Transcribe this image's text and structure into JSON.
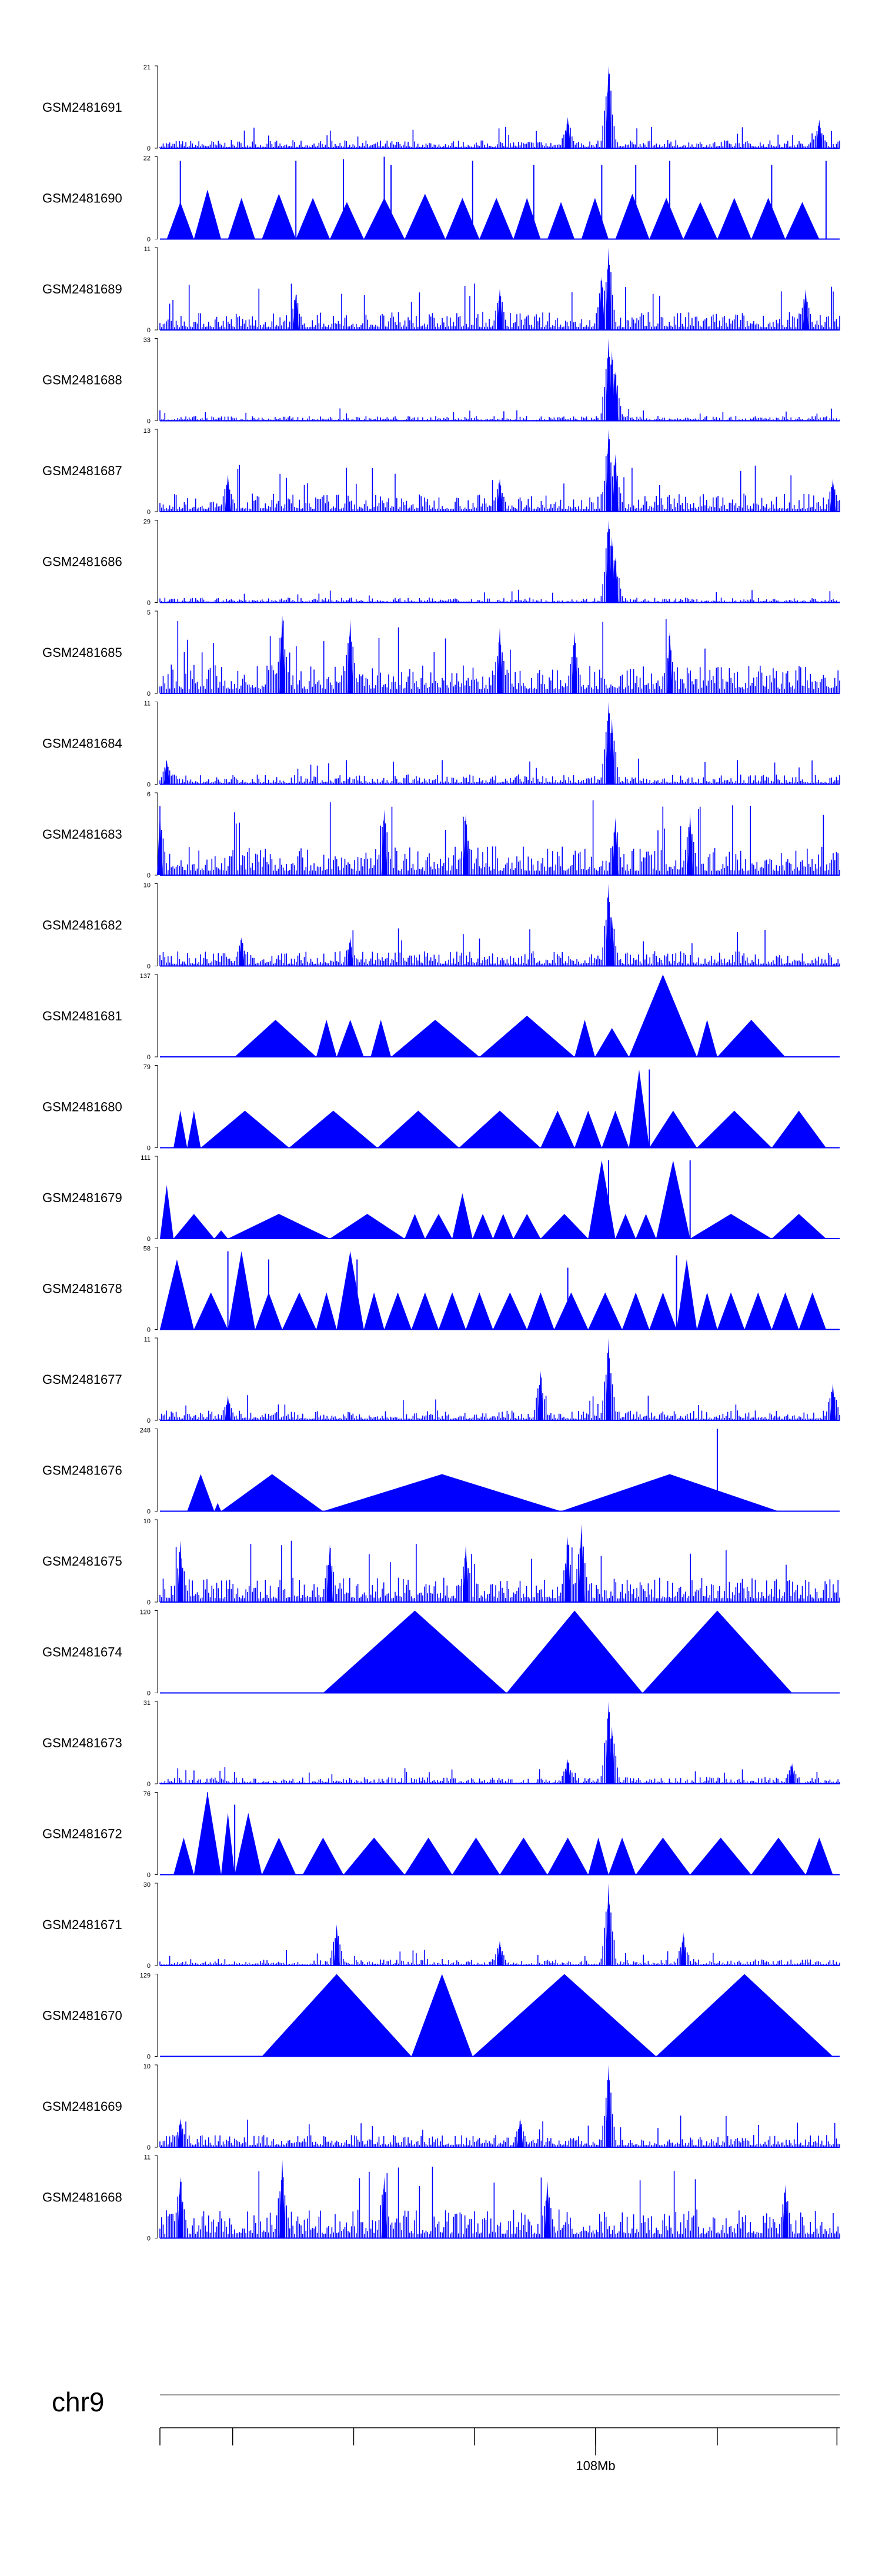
{
  "chart_data": {
    "type": "area",
    "chromosome": "chr9",
    "coordinate_label": "108Mb",
    "colors": {
      "signal": "#0000ff",
      "axis": "#000000",
      "ideogram": "#999999"
    },
    "tracks": [
      {
        "name": "GSM2481691",
        "ymax": 21,
        "ymin": 0,
        "style": "dense",
        "baseline": 0.1,
        "peaks": [
          [
            0.66,
            1.0
          ],
          [
            0.6,
            0.38
          ],
          [
            0.97,
            0.35
          ]
        ]
      },
      {
        "name": "GSM2481690",
        "ymax": 22,
        "ymin": 0,
        "style": "triangles",
        "tri": [
          [
            0.01,
            0.05,
            0.45
          ],
          [
            0.05,
            0.09,
            0.6
          ],
          [
            0.1,
            0.14,
            0.5
          ],
          [
            0.15,
            0.2,
            0.55
          ],
          [
            0.2,
            0.25,
            0.5
          ],
          [
            0.25,
            0.3,
            0.45
          ],
          [
            0.3,
            0.36,
            0.5
          ],
          [
            0.36,
            0.42,
            0.55
          ],
          [
            0.42,
            0.47,
            0.5
          ],
          [
            0.47,
            0.52,
            0.5
          ],
          [
            0.52,
            0.56,
            0.5
          ],
          [
            0.57,
            0.61,
            0.45
          ],
          [
            0.62,
            0.66,
            0.5
          ],
          [
            0.67,
            0.72,
            0.55
          ],
          [
            0.72,
            0.77,
            0.5
          ],
          [
            0.77,
            0.82,
            0.45
          ],
          [
            0.82,
            0.87,
            0.5
          ],
          [
            0.87,
            0.92,
            0.5
          ],
          [
            0.92,
            0.97,
            0.45
          ]
        ],
        "spikes": [
          [
            0.03,
            0.95
          ],
          [
            0.2,
            0.95
          ],
          [
            0.27,
            0.97
          ],
          [
            0.33,
            1.0
          ],
          [
            0.34,
            0.9
          ],
          [
            0.46,
            0.95
          ],
          [
            0.55,
            0.9
          ],
          [
            0.65,
            0.9
          ],
          [
            0.7,
            0.9
          ],
          [
            0.75,
            0.95
          ],
          [
            0.9,
            0.9
          ],
          [
            0.98,
            0.95
          ]
        ]
      },
      {
        "name": "GSM2481689",
        "ymax": 11,
        "ymin": 0,
        "style": "dense",
        "baseline": 0.22,
        "peaks": [
          [
            0.66,
            1.0
          ],
          [
            0.65,
            0.65
          ],
          [
            0.5,
            0.5
          ],
          [
            0.2,
            0.45
          ],
          [
            0.95,
            0.5
          ]
        ]
      },
      {
        "name": "GSM2481688",
        "ymax": 33,
        "ymin": 0,
        "style": "dense",
        "baseline": 0.06,
        "peaks": [
          [
            0.66,
            1.0
          ],
          [
            0.665,
            0.85
          ],
          [
            0.67,
            0.6
          ]
        ]
      },
      {
        "name": "GSM2481687",
        "ymax": 13,
        "ymin": 0,
        "style": "dense",
        "baseline": 0.22,
        "peaks": [
          [
            0.66,
            1.0
          ],
          [
            0.67,
            0.7
          ],
          [
            0.1,
            0.45
          ],
          [
            0.5,
            0.4
          ],
          [
            0.99,
            0.4
          ]
        ]
      },
      {
        "name": "GSM2481686",
        "ymax": 29,
        "ymin": 0,
        "style": "dense",
        "baseline": 0.06,
        "peaks": [
          [
            0.66,
            1.0
          ],
          [
            0.665,
            0.8
          ],
          [
            0.67,
            0.55
          ]
        ]
      },
      {
        "name": "GSM2481685",
        "ymax": 5,
        "ymin": 0,
        "style": "dense",
        "baseline": 0.35,
        "peaks": [
          [
            0.18,
            0.95
          ],
          [
            0.28,
            0.9
          ],
          [
            0.5,
            0.8
          ],
          [
            0.61,
            0.75
          ],
          [
            0.75,
            0.75
          ]
        ]
      },
      {
        "name": "GSM2481684",
        "ymax": 11,
        "ymin": 0,
        "style": "dense",
        "baseline": 0.12,
        "peaks": [
          [
            0.66,
            1.0
          ],
          [
            0.665,
            0.8
          ],
          [
            0.01,
            0.3
          ]
        ]
      },
      {
        "name": "GSM2481683",
        "ymax": 6,
        "ymin": 0,
        "style": "dense",
        "baseline": 0.35,
        "peaks": [
          [
            0.0,
            0.75
          ],
          [
            0.33,
            0.8
          ],
          [
            0.45,
            0.75
          ],
          [
            0.67,
            0.7
          ],
          [
            0.78,
            0.75
          ]
        ]
      },
      {
        "name": "GSM2481682",
        "ymax": 10,
        "ymin": 0,
        "style": "dense",
        "baseline": 0.18,
        "peaks": [
          [
            0.66,
            1.0
          ],
          [
            0.665,
            0.6
          ],
          [
            0.12,
            0.35
          ],
          [
            0.28,
            0.35
          ]
        ]
      },
      {
        "name": "GSM2481681",
        "ymax": 137,
        "ymin": 0,
        "style": "triangles",
        "tri": [
          [
            0.11,
            0.23,
            0.45
          ],
          [
            0.23,
            0.26,
            0.45
          ],
          [
            0.26,
            0.3,
            0.45
          ],
          [
            0.31,
            0.34,
            0.45
          ],
          [
            0.34,
            0.47,
            0.45
          ],
          [
            0.47,
            0.61,
            0.5
          ],
          [
            0.61,
            0.64,
            0.45
          ],
          [
            0.64,
            0.69,
            0.35
          ],
          [
            0.69,
            0.79,
            1.0
          ],
          [
            0.79,
            0.82,
            0.45
          ],
          [
            0.82,
            0.92,
            0.45
          ]
        ],
        "spikes": []
      },
      {
        "name": "GSM2481680",
        "ymax": 79,
        "ymin": 0,
        "style": "triangles",
        "tri": [
          [
            0.02,
            0.04,
            0.45
          ],
          [
            0.04,
            0.06,
            0.45
          ],
          [
            0.06,
            0.19,
            0.45
          ],
          [
            0.19,
            0.32,
            0.45
          ],
          [
            0.32,
            0.44,
            0.45
          ],
          [
            0.44,
            0.56,
            0.45
          ],
          [
            0.56,
            0.61,
            0.45
          ],
          [
            0.61,
            0.65,
            0.45
          ],
          [
            0.65,
            0.69,
            0.45
          ],
          [
            0.69,
            0.72,
            0.95
          ],
          [
            0.72,
            0.79,
            0.45
          ],
          [
            0.79,
            0.9,
            0.45
          ],
          [
            0.9,
            0.98,
            0.45
          ]
        ],
        "spikes": [
          [
            0.72,
            0.95
          ]
        ]
      },
      {
        "name": "GSM2481679",
        "ymax": 111,
        "ymin": 0,
        "style": "triangles",
        "tri": [
          [
            0.0,
            0.02,
            0.65
          ],
          [
            0.02,
            0.08,
            0.3
          ],
          [
            0.08,
            0.1,
            0.1
          ],
          [
            0.1,
            0.25,
            0.3
          ],
          [
            0.25,
            0.36,
            0.3
          ],
          [
            0.36,
            0.39,
            0.3
          ],
          [
            0.39,
            0.43,
            0.3
          ],
          [
            0.43,
            0.46,
            0.55
          ],
          [
            0.46,
            0.49,
            0.3
          ],
          [
            0.49,
            0.52,
            0.3
          ],
          [
            0.52,
            0.56,
            0.3
          ],
          [
            0.56,
            0.63,
            0.3
          ],
          [
            0.63,
            0.67,
            0.95
          ],
          [
            0.67,
            0.7,
            0.3
          ],
          [
            0.7,
            0.73,
            0.3
          ],
          [
            0.73,
            0.78,
            0.95
          ],
          [
            0.78,
            0.9,
            0.3
          ],
          [
            0.9,
            0.98,
            0.3
          ]
        ],
        "spikes": [
          [
            0.66,
            0.95
          ],
          [
            0.78,
            0.95
          ]
        ]
      },
      {
        "name": "GSM2481678",
        "ymax": 58,
        "ymin": 0,
        "style": "triangles",
        "tri": [
          [
            0.0,
            0.05,
            0.85
          ],
          [
            0.05,
            0.1,
            0.45
          ],
          [
            0.1,
            0.14,
            0.95
          ],
          [
            0.14,
            0.18,
            0.45
          ],
          [
            0.18,
            0.23,
            0.45
          ],
          [
            0.23,
            0.26,
            0.45
          ],
          [
            0.26,
            0.3,
            0.95
          ],
          [
            0.3,
            0.33,
            0.45
          ],
          [
            0.33,
            0.37,
            0.45
          ],
          [
            0.37,
            0.41,
            0.45
          ],
          [
            0.41,
            0.45,
            0.45
          ],
          [
            0.45,
            0.49,
            0.45
          ],
          [
            0.49,
            0.54,
            0.45
          ],
          [
            0.54,
            0.58,
            0.45
          ],
          [
            0.58,
            0.63,
            0.45
          ],
          [
            0.63,
            0.68,
            0.45
          ],
          [
            0.68,
            0.72,
            0.45
          ],
          [
            0.72,
            0.76,
            0.45
          ],
          [
            0.76,
            0.79,
            0.85
          ],
          [
            0.79,
            0.82,
            0.45
          ],
          [
            0.82,
            0.86,
            0.45
          ],
          [
            0.86,
            0.9,
            0.45
          ],
          [
            0.9,
            0.94,
            0.45
          ],
          [
            0.94,
            0.98,
            0.45
          ]
        ],
        "spikes": [
          [
            0.1,
            0.95
          ],
          [
            0.16,
            0.85
          ],
          [
            0.29,
            0.85
          ],
          [
            0.6,
            0.75
          ],
          [
            0.76,
            0.9
          ]
        ]
      },
      {
        "name": "GSM2481677",
        "ymax": 11,
        "ymin": 0,
        "style": "dense",
        "baseline": 0.12,
        "peaks": [
          [
            0.66,
            1.0
          ],
          [
            0.56,
            0.6
          ],
          [
            0.1,
            0.3
          ],
          [
            0.99,
            0.45
          ]
        ]
      },
      {
        "name": "GSM2481676",
        "ymax": 248,
        "ymin": 0,
        "style": "triangles",
        "tri": [
          [
            0.04,
            0.08,
            0.45
          ],
          [
            0.08,
            0.09,
            0.1
          ],
          [
            0.09,
            0.24,
            0.45
          ],
          [
            0.24,
            0.59,
            0.45
          ],
          [
            0.59,
            0.91,
            0.45
          ]
        ],
        "spikes": [
          [
            0.82,
            1.0
          ]
        ]
      },
      {
        "name": "GSM2481675",
        "ymax": 10,
        "ymin": 0,
        "style": "dense",
        "baseline": 0.3,
        "peaks": [
          [
            0.62,
            0.95
          ],
          [
            0.6,
            0.8
          ],
          [
            0.03,
            0.75
          ],
          [
            0.25,
            0.7
          ],
          [
            0.45,
            0.7
          ]
        ]
      },
      {
        "name": "GSM2481674",
        "ymax": 120,
        "ymin": 0,
        "style": "triangles",
        "tri": [
          [
            0.24,
            0.51,
            1.0
          ],
          [
            0.51,
            0.71,
            1.0
          ],
          [
            0.71,
            0.93,
            1.0
          ]
        ],
        "spikes": []
      },
      {
        "name": "GSM2481673",
        "ymax": 31,
        "ymin": 0,
        "style": "dense",
        "baseline": 0.08,
        "peaks": [
          [
            0.66,
            1.0
          ],
          [
            0.665,
            0.7
          ],
          [
            0.6,
            0.3
          ],
          [
            0.93,
            0.25
          ]
        ]
      },
      {
        "name": "GSM2481672",
        "ymax": 76,
        "ymin": 0,
        "style": "triangles",
        "tri": [
          [
            0.02,
            0.05,
            0.45
          ],
          [
            0.05,
            0.09,
            1.0
          ],
          [
            0.09,
            0.11,
            0.75
          ],
          [
            0.11,
            0.15,
            0.75
          ],
          [
            0.15,
            0.2,
            0.45
          ],
          [
            0.21,
            0.27,
            0.45
          ],
          [
            0.27,
            0.36,
            0.45
          ],
          [
            0.36,
            0.43,
            0.45
          ],
          [
            0.43,
            0.5,
            0.45
          ],
          [
            0.5,
            0.57,
            0.45
          ],
          [
            0.57,
            0.63,
            0.45
          ],
          [
            0.63,
            0.66,
            0.45
          ],
          [
            0.66,
            0.7,
            0.45
          ],
          [
            0.7,
            0.78,
            0.45
          ],
          [
            0.78,
            0.87,
            0.45
          ],
          [
            0.87,
            0.95,
            0.45
          ],
          [
            0.95,
            0.99,
            0.45
          ]
        ],
        "spikes": [
          [
            0.07,
            1.0
          ],
          [
            0.11,
            0.85
          ]
        ]
      },
      {
        "name": "GSM2481671",
        "ymax": 30,
        "ymin": 0,
        "style": "dense",
        "baseline": 0.08,
        "peaks": [
          [
            0.66,
            1.0
          ],
          [
            0.26,
            0.5
          ],
          [
            0.77,
            0.4
          ],
          [
            0.5,
            0.3
          ]
        ]
      },
      {
        "name": "GSM2481670",
        "ymax": 129,
        "ymin": 0,
        "style": "triangles",
        "tri": [
          [
            0.15,
            0.37,
            1.0
          ],
          [
            0.37,
            0.46,
            1.0
          ],
          [
            0.46,
            0.73,
            1.0
          ],
          [
            0.73,
            0.99,
            1.0
          ]
        ],
        "spikes": []
      },
      {
        "name": "GSM2481669",
        "ymax": 10,
        "ymin": 0,
        "style": "dense",
        "baseline": 0.15,
        "peaks": [
          [
            0.66,
            1.0
          ],
          [
            0.03,
            0.35
          ],
          [
            0.53,
            0.35
          ]
        ]
      },
      {
        "name": "GSM2481668",
        "ymax": 11,
        "ymin": 0,
        "style": "dense",
        "baseline": 0.35,
        "peaks": [
          [
            0.18,
            0.95
          ],
          [
            0.03,
            0.75
          ],
          [
            0.33,
            0.75
          ],
          [
            0.57,
            0.7
          ],
          [
            0.92,
            0.65
          ]
        ]
      }
    ]
  }
}
